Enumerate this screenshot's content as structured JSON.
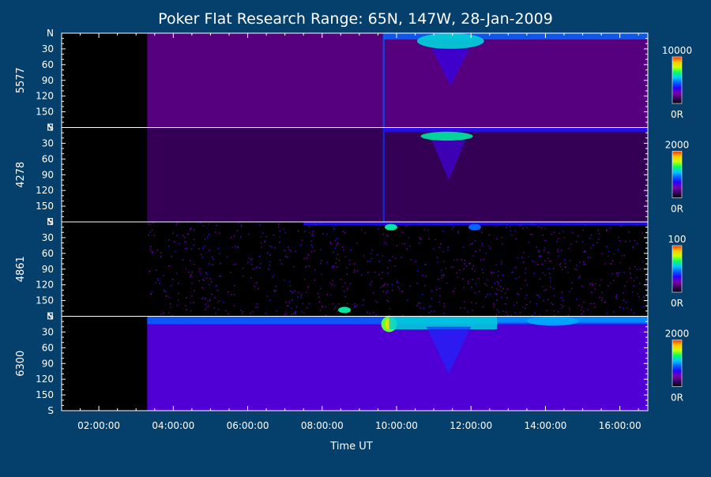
{
  "chart_data": {
    "type": "heatmap",
    "title": "Poker Flat Research Range: 65N, 147W, 28-Jan-2009",
    "xlabel": "Time UT",
    "x_ticks": [
      "02:00:00",
      "04:00:00",
      "06:00:00",
      "08:00:00",
      "10:00:00",
      "12:00:00",
      "14:00:00",
      "16:00:00"
    ],
    "x_tick_hours": [
      2,
      4,
      6,
      8,
      10,
      12,
      14,
      16
    ],
    "x_range_hours": [
      1.0,
      16.75
    ],
    "data_start_hour": 3.3,
    "y_ticks": [
      "N",
      "30",
      "60",
      "90",
      "120",
      "150",
      "S"
    ],
    "y_tick_values": [
      0,
      30,
      60,
      90,
      120,
      150,
      180
    ],
    "y_range": [
      0,
      180
    ],
    "colorscale": [
      "#000000",
      "#3a0060",
      "#7a00a8",
      "#2a00ff",
      "#0060ff",
      "#00c8ff",
      "#00ff60",
      "#c8ff00",
      "#ffc800",
      "#ff3000"
    ],
    "panels": [
      {
        "label": "5577",
        "colorbar_max": "10000",
        "colorbar_min": "0R",
        "features": [
          {
            "kind": "background",
            "start_hour": 3.3,
            "end_hour": 16.75,
            "intensity": 0.16
          },
          {
            "kind": "onset_edge",
            "hour": 9.65,
            "intensity": 0.45
          },
          {
            "kind": "band",
            "start_hour": 9.65,
            "end_hour": 16.75,
            "y_from": 0,
            "y_to": 12,
            "intensity": 0.45
          },
          {
            "kind": "arc",
            "center_hour": 11.45,
            "halfwidth_hours": 0.9,
            "y_from": 0,
            "y_to": 30,
            "intensity": 0.58
          },
          {
            "kind": "drape",
            "center_hour": 11.45,
            "halfwidth_hours": 0.5,
            "y_from": 30,
            "y_to": 100,
            "intensity": 0.32
          }
        ]
      },
      {
        "label": "4278",
        "colorbar_max": "2000",
        "colorbar_min": "0R",
        "features": [
          {
            "kind": "background",
            "start_hour": 3.3,
            "end_hour": 16.75,
            "intensity": 0.1
          },
          {
            "kind": "onset_edge",
            "hour": 9.65,
            "intensity": 0.4
          },
          {
            "kind": "band",
            "start_hour": 9.65,
            "end_hour": 16.75,
            "y_from": 0,
            "y_to": 8,
            "intensity": 0.35
          },
          {
            "kind": "arc",
            "center_hour": 11.35,
            "halfwidth_hours": 0.7,
            "y_from": 8,
            "y_to": 25,
            "intensity": 0.62
          },
          {
            "kind": "drape",
            "center_hour": 11.4,
            "halfwidth_hours": 0.45,
            "y_from": 25,
            "y_to": 100,
            "intensity": 0.3
          }
        ]
      },
      {
        "label": "4861",
        "colorbar_max": "100",
        "colorbar_min": "0R",
        "features": [
          {
            "kind": "noise",
            "start_hour": 3.3,
            "end_hour": 16.75,
            "intensity": 0.3
          },
          {
            "kind": "band",
            "start_hour": 7.5,
            "end_hour": 16.75,
            "y_from": 0,
            "y_to": 6,
            "intensity": 0.35
          },
          {
            "kind": "spot",
            "center_hour": 9.85,
            "y": 10,
            "intensity": 0.62
          },
          {
            "kind": "spot",
            "center_hour": 12.1,
            "y": 10,
            "intensity": 0.45
          },
          {
            "kind": "spot",
            "center_hour": 8.6,
            "y": 168,
            "intensity": 0.62
          }
        ]
      },
      {
        "label": "6300",
        "colorbar_max": "2000",
        "colorbar_min": "0R",
        "features": [
          {
            "kind": "background",
            "start_hour": 3.3,
            "end_hour": 16.75,
            "intensity": 0.28
          },
          {
            "kind": "band",
            "start_hour": 3.3,
            "end_hour": 16.75,
            "y_from": 0,
            "y_to": 15,
            "intensity": 0.45
          },
          {
            "kind": "onset_blob",
            "center_hour": 9.8,
            "y_from": 0,
            "y_to": 30,
            "intensity": 0.72
          },
          {
            "kind": "band",
            "start_hour": 9.8,
            "end_hour": 12.7,
            "y_from": 0,
            "y_to": 25,
            "intensity": 0.58
          },
          {
            "kind": "band",
            "start_hour": 12.7,
            "end_hour": 16.75,
            "y_from": 0,
            "y_to": 12,
            "intensity": 0.5
          },
          {
            "kind": "arc",
            "center_hour": 14.2,
            "halfwidth_hours": 0.7,
            "y_from": 0,
            "y_to": 18,
            "intensity": 0.52
          },
          {
            "kind": "drape",
            "center_hour": 11.4,
            "halfwidth_hours": 0.6,
            "y_from": 20,
            "y_to": 110,
            "intensity": 0.38
          }
        ]
      }
    ]
  }
}
